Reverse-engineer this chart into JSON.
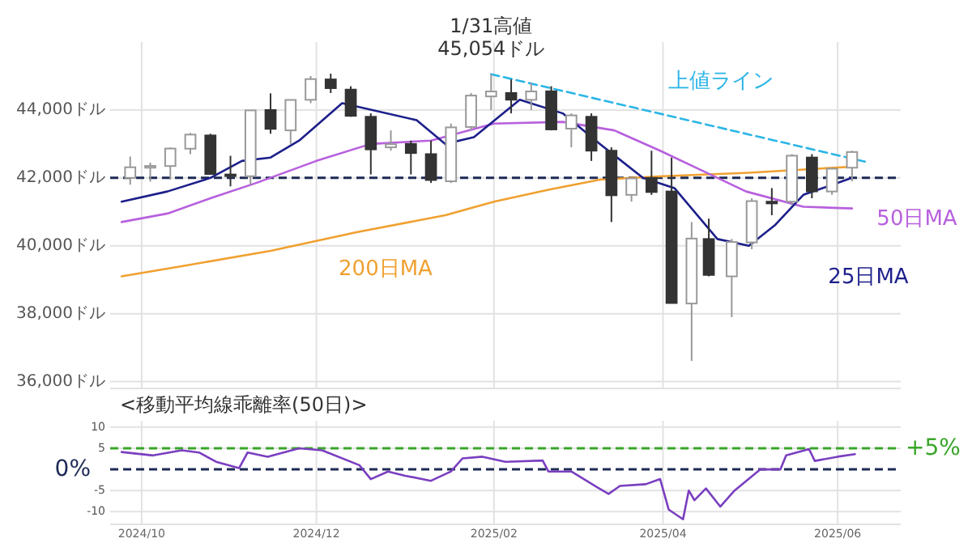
{
  "chart_data": [
    {
      "type": "candlestick",
      "ylim": [
        35800,
        46000
      ],
      "xlim": [
        "2024-09-20",
        "2025-06-23"
      ],
      "yticks": [
        {
          "value": 36000,
          "label": "36,000ドル"
        },
        {
          "value": 38000,
          "label": "38,000ドル"
        },
        {
          "value": 40000,
          "label": "40,000ドル"
        },
        {
          "value": 42000,
          "label": "42,000ドル"
        },
        {
          "value": 44000,
          "label": "44,000ドル"
        }
      ],
      "xticks": [
        {
          "value": "2024-10-01",
          "label": null
        },
        {
          "value": "2024-12-01",
          "label": null
        },
        {
          "value": "2025-02-01",
          "label": null
        },
        {
          "value": "2025-04-01",
          "label": null
        },
        {
          "value": "2025-06-01",
          "label": null
        }
      ],
      "tick_labels": "y",
      "grid": true,
      "x": [
        "2024-09-27",
        "2024-10-04",
        "2024-10-11",
        "2024-10-18",
        "2024-10-25",
        "2024-11-01",
        "2024-11-08",
        "2024-11-15",
        "2024-11-22",
        "2024-11-29",
        "2024-12-06",
        "2024-12-13",
        "2024-12-20",
        "2024-12-27",
        "2025-01-03",
        "2025-01-10",
        "2025-01-17",
        "2025-01-24",
        "2025-01-31",
        "2025-02-07",
        "2025-02-14",
        "2025-02-21",
        "2025-02-28",
        "2025-03-07",
        "2025-03-14",
        "2025-03-21",
        "2025-03-28",
        "2025-04-04",
        "2025-04-11",
        "2025-04-17",
        "2025-04-25",
        "2025-05-02",
        "2025-05-09",
        "2025-05-16",
        "2025-05-23",
        "2025-05-30",
        "2025-06-06"
      ],
      "ohlc": [
        [
          42000,
          42630,
          41800,
          42313
        ],
        [
          42300,
          42450,
          41890,
          42352
        ],
        [
          42350,
          42900,
          41950,
          42864
        ],
        [
          42860,
          43325,
          42700,
          43275
        ],
        [
          43250,
          43300,
          42100,
          42114
        ],
        [
          42100,
          42650,
          41750,
          42052
        ],
        [
          42050,
          44000,
          41800,
          43989
        ],
        [
          44000,
          44490,
          43300,
          43445
        ],
        [
          43400,
          44300,
          43000,
          44296
        ],
        [
          44300,
          45000,
          44200,
          44910
        ],
        [
          44900,
          45070,
          44500,
          44643
        ],
        [
          44600,
          44700,
          43800,
          43828
        ],
        [
          43800,
          43900,
          42100,
          42840
        ],
        [
          42900,
          43400,
          42800,
          42992
        ],
        [
          43000,
          43100,
          42100,
          42732
        ],
        [
          42700,
          43100,
          41850,
          41938
        ],
        [
          41900,
          43600,
          41850,
          43488
        ],
        [
          43500,
          44500,
          43400,
          44424
        ],
        [
          44400,
          45054,
          44000,
          44545
        ],
        [
          44500,
          44900,
          43900,
          44303
        ],
        [
          44300,
          44800,
          44000,
          44546
        ],
        [
          44550,
          44700,
          43400,
          43428
        ],
        [
          43450,
          43900,
          42900,
          43841
        ],
        [
          43800,
          43900,
          42500,
          42802
        ],
        [
          42800,
          42900,
          40700,
          41488
        ],
        [
          41500,
          42000,
          41300,
          41985
        ],
        [
          42000,
          42800,
          41500,
          41584
        ],
        [
          41600,
          42600,
          38300,
          38315
        ],
        [
          38300,
          40700,
          36611,
          40213
        ],
        [
          40200,
          40800,
          39100,
          39142
        ],
        [
          39100,
          40200,
          37900,
          40113
        ],
        [
          40100,
          41400,
          39900,
          41317
        ],
        [
          41300,
          41700,
          40900,
          41249
        ],
        [
          41300,
          42700,
          41200,
          42654
        ],
        [
          42600,
          42700,
          41400,
          41603
        ],
        [
          41600,
          42300,
          41500,
          42270
        ],
        [
          42300,
          42800,
          41900,
          42762
        ]
      ],
      "series": [
        {
          "name": "200日MA",
          "type": "line",
          "color": "#f0a030",
          "x": [
            "2024-09-24",
            "2024-10-15",
            "2024-11-15",
            "2024-12-15",
            "2025-01-15",
            "2025-02-01",
            "2025-02-20",
            "2025-03-10",
            "2025-04-01",
            "2025-05-01",
            "2025-06-06"
          ],
          "values": [
            39100,
            39400,
            39850,
            40400,
            40900,
            41300,
            41650,
            41950,
            42050,
            42150,
            42330
          ]
        },
        {
          "name": "50日MA",
          "type": "line",
          "color": "#b760dd",
          "x": [
            "2024-09-24",
            "2024-10-10",
            "2024-10-25",
            "2024-11-10",
            "2024-12-01",
            "2024-12-20",
            "2025-01-10",
            "2025-02-01",
            "2025-02-25",
            "2025-03-15",
            "2025-03-31",
            "2025-04-15",
            "2025-04-30",
            "2025-05-20",
            "2025-06-06"
          ],
          "values": [
            40700,
            40950,
            41400,
            41850,
            42500,
            43000,
            43100,
            43600,
            43650,
            43400,
            42800,
            42200,
            41600,
            41150,
            41100
          ]
        },
        {
          "name": "25日MA",
          "type": "line",
          "color": "#1c1f8a",
          "x": [
            "2024-09-24",
            "2024-10-10",
            "2024-10-25",
            "2024-11-05",
            "2024-11-15",
            "2024-11-25",
            "2024-12-10",
            "2025-01-05",
            "2025-01-15",
            "2025-01-25",
            "2025-02-10",
            "2025-02-25",
            "2025-03-10",
            "2025-03-25",
            "2025-04-05",
            "2025-04-20",
            "2025-05-01",
            "2025-05-10",
            "2025-05-20",
            "2025-06-06"
          ],
          "values": [
            41300,
            41600,
            42000,
            42500,
            42600,
            43100,
            44200,
            43700,
            43000,
            43200,
            44300,
            43900,
            43000,
            42000,
            41700,
            40200,
            40000,
            40600,
            41500,
            42000
          ]
        },
        {
          "name": "上値ライン",
          "type": "line",
          "color": "#2bb5e6",
          "line_style": "dashed",
          "x": [
            "2025-01-31",
            "2025-06-12"
          ],
          "values": [
            45054,
            42450
          ]
        }
      ],
      "ref_lines": [
        {
          "axis": "y",
          "value": 42000,
          "color": "#1e2a55",
          "line_style": "dashed"
        }
      ],
      "annotations": [
        {
          "text": "1/31高値\n45,054ドル",
          "x": "2025-01-31",
          "y": 45054
        }
      ]
    },
    {
      "type": "line",
      "title": "<移動平均線乖離率(50日)>",
      "ylim": [
        -13,
        11.5
      ],
      "xlim": [
        "2024-09-20",
        "2025-06-23"
      ],
      "yticks": [
        -10,
        -5,
        5,
        10
      ],
      "xticks": [
        {
          "value": "2024-10-01",
          "label": "2024/10"
        },
        {
          "value": "2024-12-01",
          "label": "2024/12"
        },
        {
          "value": "2025-02-01",
          "label": "2025/02"
        },
        {
          "value": "2025-04-01",
          "label": "2025/04"
        },
        {
          "value": "2025-06-01",
          "label": "2025/06"
        }
      ],
      "grid": true,
      "color": "#7a3fc0",
      "x": [
        "2024-09-24",
        "2024-10-05",
        "2024-10-15",
        "2024-10-21",
        "2024-10-27",
        "2024-11-04",
        "2024-11-07",
        "2024-11-14",
        "2024-11-25",
        "2024-12-03",
        "2024-12-16",
        "2024-12-20",
        "2024-12-26",
        "2025-01-01",
        "2025-01-10",
        "2025-01-17",
        "2025-01-21",
        "2025-01-28",
        "2025-02-05",
        "2025-02-18",
        "2025-02-20",
        "2025-02-28",
        "2025-03-09",
        "2025-03-13",
        "2025-03-17",
        "2025-03-26",
        "2025-03-31",
        "2025-04-03",
        "2025-04-08",
        "2025-04-10",
        "2025-04-12",
        "2025-04-16",
        "2025-04-21",
        "2025-04-26",
        "2025-05-05",
        "2025-05-12",
        "2025-05-14",
        "2025-05-22",
        "2025-05-24",
        "2025-06-01",
        "2025-06-07"
      ],
      "values": [
        4.1,
        3.3,
        4.5,
        4,
        1.8,
        0.3,
        4,
        3,
        5,
        4.5,
        1,
        -2.3,
        -0.5,
        -1.5,
        -2.7,
        -0.5,
        2.6,
        3,
        1.8,
        2.1,
        -0.5,
        -0.5,
        -4.2,
        -5.8,
        -3.9,
        -3.5,
        -2.3,
        -9.5,
        -11.8,
        -5,
        -7.3,
        -4.5,
        -8.8,
        -5,
        0,
        0,
        3.3,
        4.8,
        2,
        3,
        3.6
      ],
      "ref_lines": [
        {
          "axis": "y",
          "value": 5,
          "label": "+5%",
          "color": "#3aa52a",
          "line_style": "dashed"
        },
        {
          "axis": "y",
          "value": 0,
          "label": "0%",
          "color": "#1e2a55",
          "line_style": "dashed"
        }
      ]
    }
  ]
}
